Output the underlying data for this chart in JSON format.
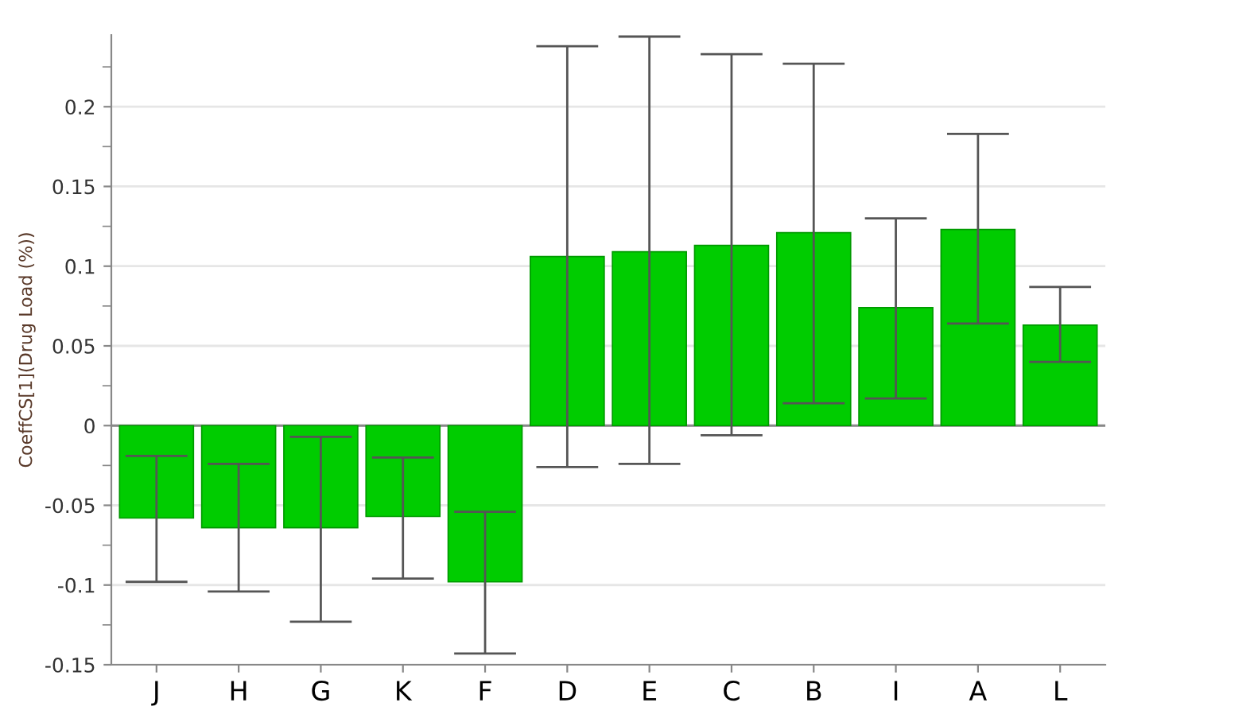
{
  "chart_data": {
    "type": "bar",
    "ylabel": "CoeffCS[1](Drug Load (%))",
    "categories": [
      "J",
      "H",
      "G",
      "K",
      "F",
      "D",
      "E",
      "C",
      "B",
      "I",
      "A",
      "L"
    ],
    "values": [
      -0.058,
      -0.064,
      -0.064,
      -0.057,
      -0.098,
      0.106,
      0.109,
      0.113,
      0.121,
      0.074,
      0.123,
      0.063
    ],
    "errors": [
      [
        -0.098,
        -0.019
      ],
      [
        -0.104,
        -0.024
      ],
      [
        -0.123,
        -0.007
      ],
      [
        -0.096,
        -0.02
      ],
      [
        -0.143,
        -0.054
      ],
      [
        -0.026,
        0.238
      ],
      [
        -0.024,
        0.244
      ],
      [
        -0.006,
        0.233
      ],
      [
        0.014,
        0.227
      ],
      [
        0.017,
        0.13
      ],
      [
        0.064,
        0.183
      ],
      [
        0.04,
        0.087
      ]
    ],
    "color": "#00cc00",
    "ylim": [
      -0.15,
      0.245
    ],
    "yticks": [
      -0.15,
      {
        "value": -0.125,
        "label": null
      },
      -0.1,
      {
        "value": -0.075,
        "label": null
      },
      -0.05,
      {
        "value": -0.025,
        "label": null
      },
      0,
      {
        "value": 0.025,
        "label": null
      },
      0.05,
      {
        "value": 0.075,
        "label": null
      },
      0.1,
      {
        "value": 0.125,
        "label": null
      },
      0.15,
      {
        "value": 0.175,
        "label": null
      },
      0.2,
      {
        "value": 0.225,
        "label": null
      }
    ],
    "grid": "y",
    "legend": false
  }
}
